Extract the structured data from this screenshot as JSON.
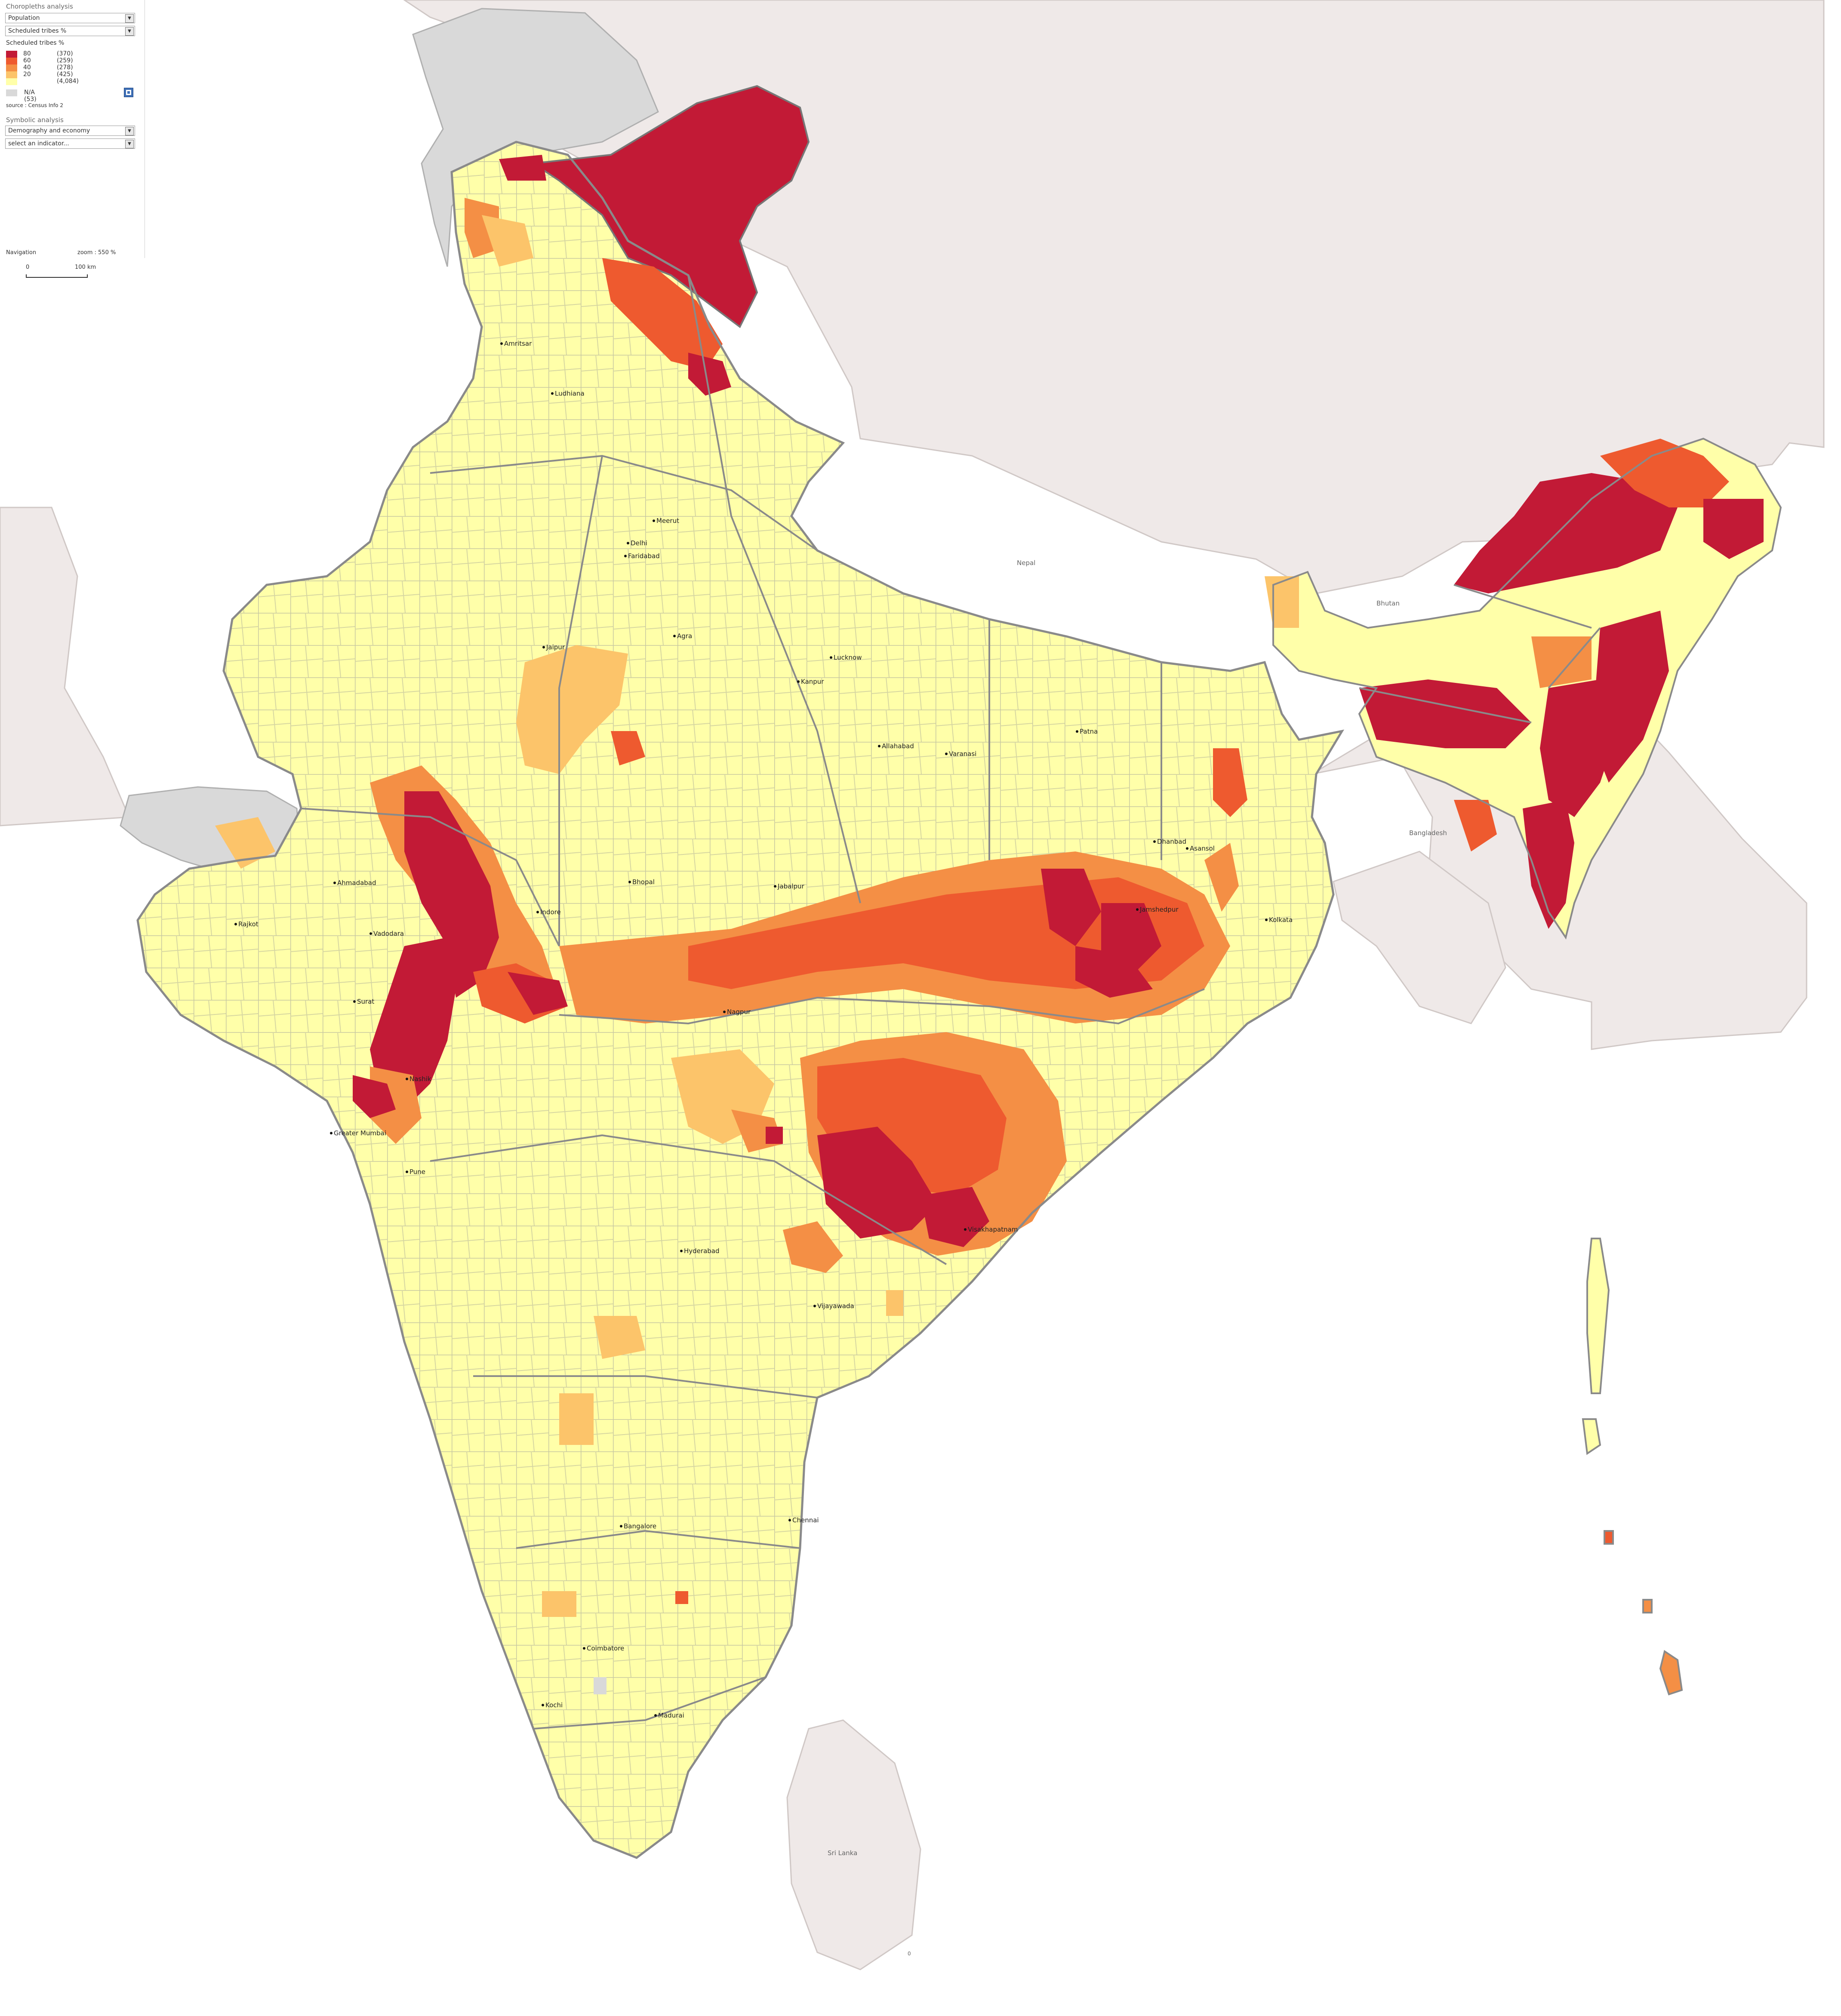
{
  "panel": {
    "choropleth_title": "Choropleths analysis",
    "theme_select": "Population",
    "indicator_select": "Scheduled tribes %",
    "legend_title": "Scheduled tribes %",
    "legend": [
      {
        "label": "80",
        "count": "(370)",
        "color": "#c21a36"
      },
      {
        "label": "60",
        "count": "(259)",
        "color": "#ee5a2f"
      },
      {
        "label": "40",
        "count": "(278)",
        "color": "#f48f45"
      },
      {
        "label": "20",
        "count": "(425)",
        "color": "#fcc46a"
      },
      {
        "label": "",
        "count": "(4,084)",
        "color": "#ffffa9"
      }
    ],
    "na_label": "N/A (53)",
    "na_color": "#d9d9d9",
    "source": "source : Census Info 2",
    "symbolic_title": "Symbolic analysis",
    "symbolic_select": "Demography and economy",
    "symbolic_indicator": "select an indicator...",
    "export_icon": "export-icon"
  },
  "navigation": {
    "label": "Navigation",
    "zoom": "zoom : 550 %",
    "scale_left": "0",
    "scale_right": "100 km"
  },
  "map": {
    "colors": {
      "background": "#ffffff",
      "neighbour": "#efe9e8",
      "disputed": "#d9d9d9",
      "base": "#ffffa9",
      "border": "#8a8a8a",
      "border_light": "#c8c8a0"
    },
    "cities": [
      "Amritsar",
      "Ludhiana",
      "Meerut",
      "Delhi",
      "Faridabad",
      "Agra",
      "Jaipur",
      "Lucknow",
      "Kanpur",
      "Allahabad",
      "Varanasi",
      "Patna",
      "Dhanbad",
      "Asansol",
      "Jamshedpur",
      "Kolkata",
      "Jabalpur",
      "Bhopal",
      "Indore",
      "Ahmadabad",
      "Rajkot",
      "Vadodara",
      "Surat",
      "Nashik",
      "Greater Mumbai",
      "Pune",
      "Nagpur",
      "Hyderabad",
      "Vijayawada",
      "Visakhapatnam",
      "Bangalore",
      "Chennai",
      "Coimbatore",
      "Kochi",
      "Madurai"
    ],
    "countries": [
      "Nepal",
      "Bhutan",
      "Bangladesh",
      "Sri Lanka"
    ],
    "bottom_mark": "0"
  }
}
